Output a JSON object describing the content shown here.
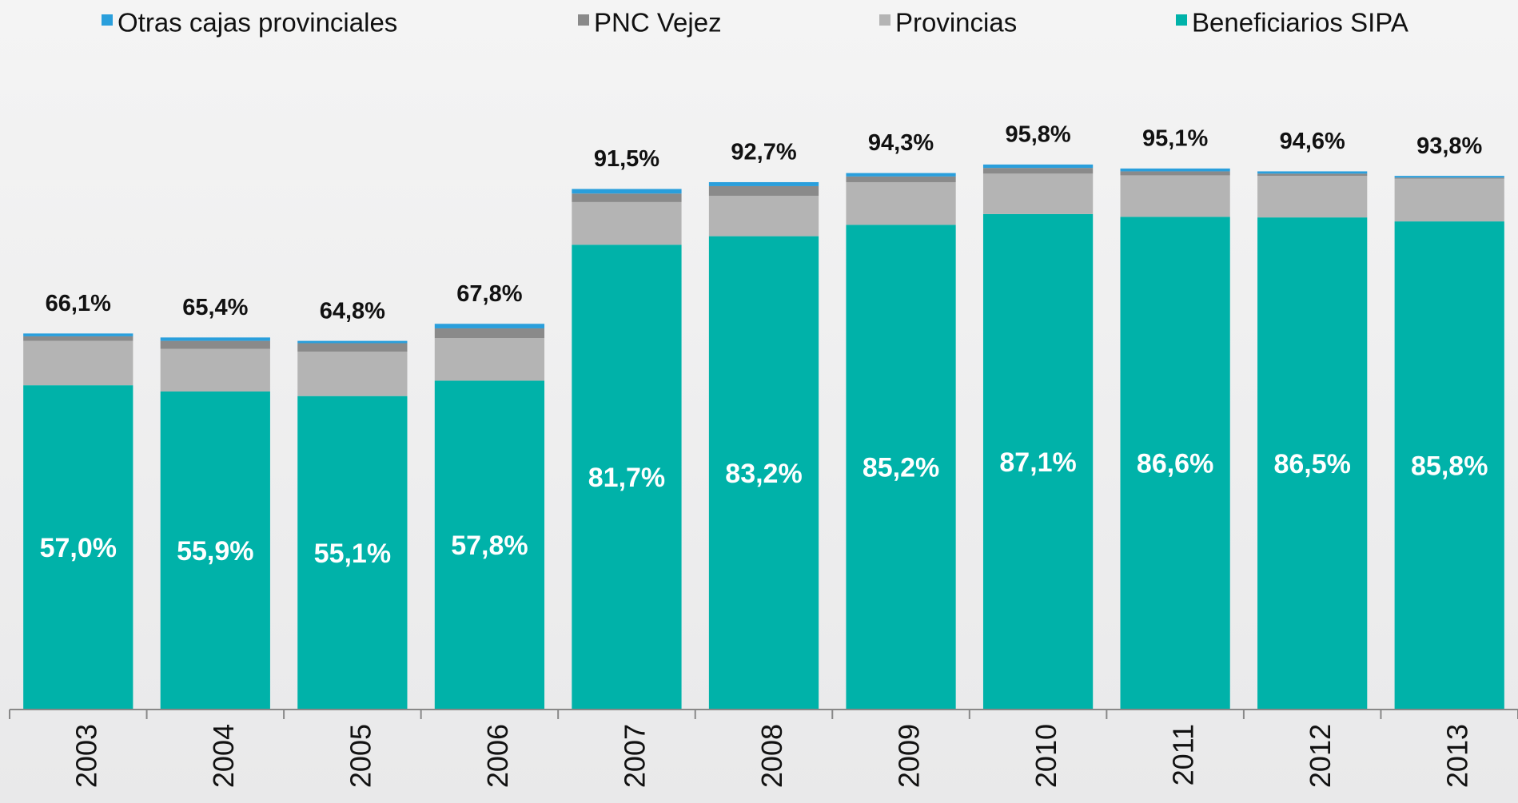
{
  "chart_data": {
    "type": "stacked_bar",
    "categories": [
      "2003",
      "2004",
      "2005",
      "2006",
      "2007",
      "2008",
      "2009",
      "2010",
      "2011",
      "2012",
      "2013"
    ],
    "series": [
      {
        "name": "Beneficiarios SIPA",
        "color": "#00b2a9",
        "values": [
          57.0,
          55.9,
          55.1,
          57.8,
          81.7,
          83.2,
          85.2,
          87.1,
          86.6,
          86.5,
          85.8
        ],
        "value_labels": [
          "57,0%",
          "55,9%",
          "55,1%",
          "57,8%",
          "81,7%",
          "83,2%",
          "85,2%",
          "87,1%",
          "86,6%",
          "86,5%",
          "85,8%"
        ]
      },
      {
        "name": "Provincias",
        "color": "#b4b4b4",
        "values": [
          7.8,
          7.5,
          7.8,
          7.5,
          7.5,
          7.1,
          7.5,
          7.1,
          7.3,
          7.3,
          7.5
        ]
      },
      {
        "name": "PNC Vejez",
        "color": "#8a8a8a",
        "values": [
          0.8,
          1.4,
          1.5,
          1.7,
          1.5,
          1.7,
          1.0,
          1.0,
          0.7,
          0.4,
          0.2
        ]
      },
      {
        "name": "Otras cajas provinciales",
        "color": "#2a9fdc",
        "values": [
          0.5,
          0.6,
          0.4,
          0.8,
          0.8,
          0.7,
          0.6,
          0.6,
          0.5,
          0.4,
          0.3
        ]
      }
    ],
    "totals": [
      66.1,
      65.4,
      64.8,
      67.8,
      91.5,
      92.7,
      94.3,
      95.8,
      95.1,
      94.6,
      93.8
    ],
    "total_labels": [
      "66,1%",
      "65,4%",
      "64,8%",
      "67,8%",
      "91,5%",
      "92,7%",
      "94,3%",
      "95,8%",
      "95,1%",
      "94,6%",
      "93,8%"
    ],
    "ylim": [
      0,
      100
    ]
  }
}
